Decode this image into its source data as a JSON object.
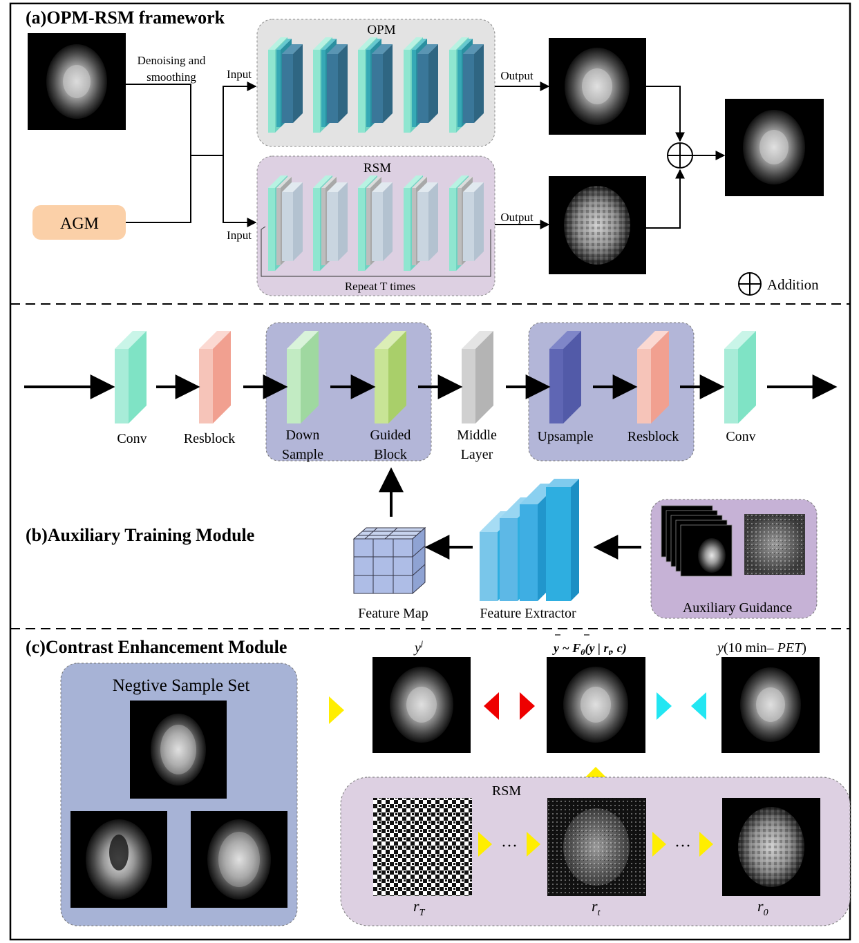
{
  "section_a": {
    "title": "(a)OPM-RSM framework",
    "denoise_line1": "Denoising and",
    "denoise_line2": "smoothing",
    "agm_label": "AGM",
    "opm_label": "OPM",
    "rsm_label": "RSM",
    "input_top": "Input",
    "input_bottom": "Input",
    "output_top": "Output",
    "output_bottom": "Output",
    "repeat_label": "Repeat T times",
    "addition_label": "Addition"
  },
  "section_b": {
    "title": "(b)Auxiliary Training Module",
    "conv1": "Conv",
    "resblock1": "Resblock",
    "down_line1": "Down",
    "down_line2": "Sample",
    "guided_line1": "Guided",
    "guided_line2": "Block",
    "middle_line1": "Middle",
    "middle_line2": "Layer",
    "upsample": "Upsample",
    "resblock2": "Resblock",
    "conv2": "Conv",
    "feature_map": "Feature Map",
    "feature_extractor": "Feature Extractor",
    "aux_guidance": "Auxiliary Guidance"
  },
  "section_c": {
    "title": "(c)Contrast Enhancement Module",
    "negative_set": "Negtive Sample Set",
    "label_yj_base": "y",
    "label_yj_sup": "j",
    "label_pred_left": "y ~ F",
    "label_pred_theta": "θ",
    "label_pred_arg": "(y | r",
    "label_pred_sub": "t",
    "label_pred_end": ", c)",
    "label_target_base": "y",
    "label_target_paren": "(10 min– ",
    "label_target_pet": "PET",
    "label_target_close": ")",
    "rsm_label": "RSM",
    "dots1": "···",
    "dots2": "···",
    "rT_base": "r",
    "rT_sub": "T",
    "rt_base": "r",
    "rt_sub": "t",
    "r0_base": "r",
    "r0_sub": "0"
  },
  "colors": {
    "agm_fill": "#fbd0a8",
    "opm_panel": "#e3e3e3",
    "rsm_panel": "#ddd0e2",
    "unet_panel": "#b3b6d8",
    "aux_panel": "#c6b2d6",
    "neg_panel": "#a7b3d6",
    "conv_teal": "#7fe3c5",
    "resblock_red": "#f1a090",
    "down_green": "#9fd8a0",
    "guided_green": "#a9cf6a",
    "middle_gray": "#b4b4b4",
    "upsample_blue": "#525aa8",
    "extractor_blue": "#2eaee0",
    "arrow_yellow": "#ffee00",
    "arrow_red": "#ee0000",
    "arrow_cyan": "#22e6f2"
  }
}
